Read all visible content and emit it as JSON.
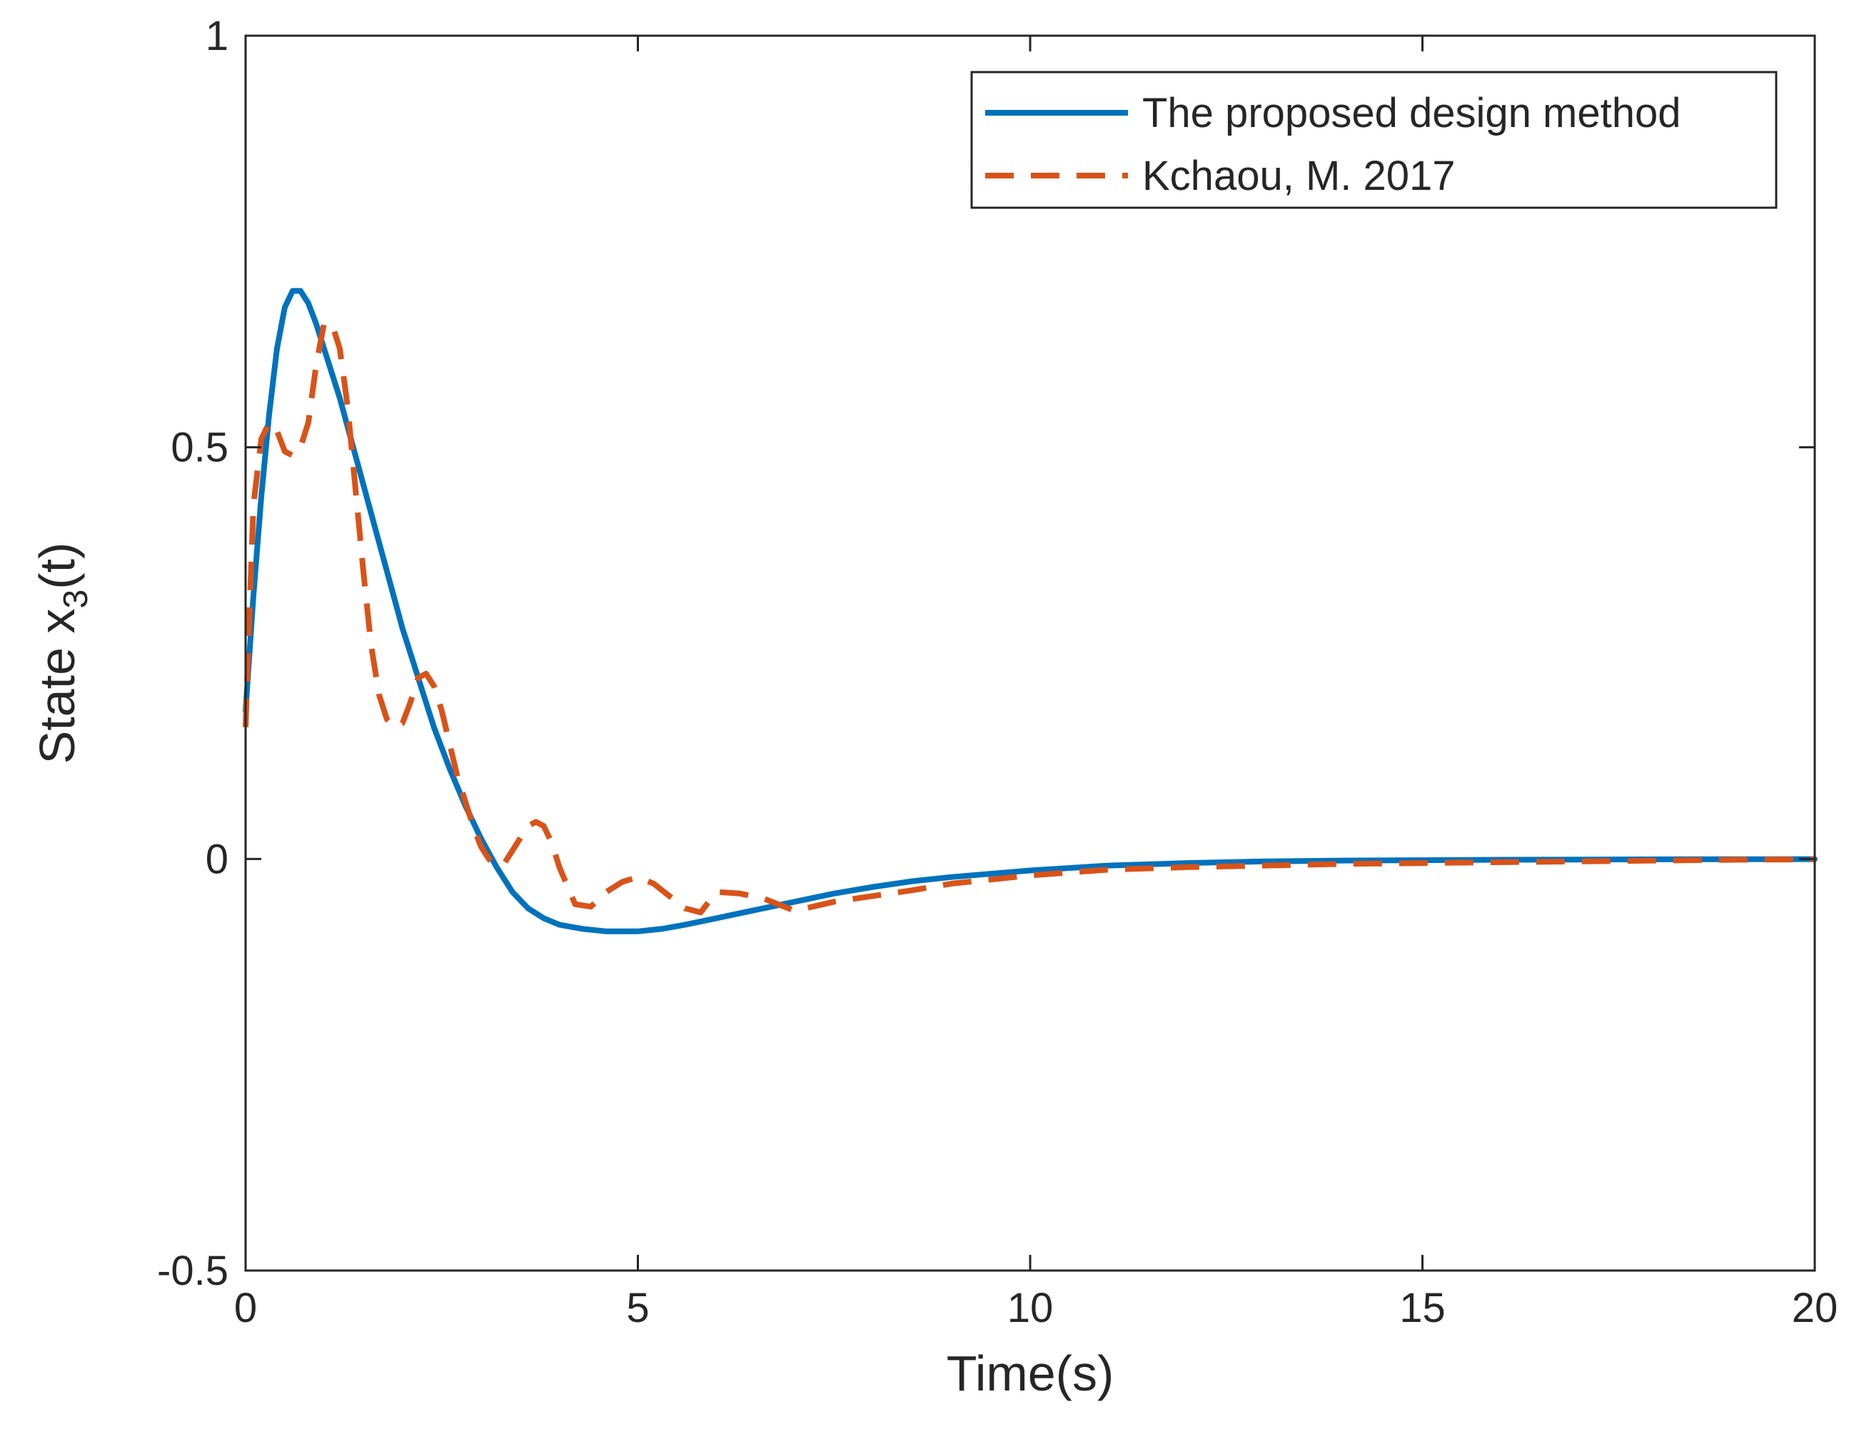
{
  "chart_data": {
    "type": "line",
    "title": "",
    "xlabel": "Time(s)",
    "ylabel": {
      "main": "State x",
      "sub": "3",
      "suffix": "(t)"
    },
    "xlim": [
      0,
      20
    ],
    "ylim": [
      -0.5,
      1
    ],
    "xticks": [
      0,
      5,
      10,
      15,
      20
    ],
    "xtick_labels": [
      "0",
      "5",
      "10",
      "15",
      "20"
    ],
    "yticks": [
      -0.5,
      0,
      0.5,
      1
    ],
    "ytick_labels": [
      "-0.5",
      "0",
      "0.5",
      "1"
    ],
    "grid": false,
    "legend_position": "top-right",
    "series": [
      {
        "name": "The proposed design method",
        "color": "#0072BD",
        "style": "solid",
        "x": [
          0,
          0.1,
          0.2,
          0.3,
          0.4,
          0.5,
          0.6,
          0.7,
          0.8,
          0.9,
          1.0,
          1.2,
          1.4,
          1.6,
          1.8,
          2.0,
          2.2,
          2.4,
          2.6,
          2.8,
          3.0,
          3.2,
          3.4,
          3.6,
          3.8,
          4.0,
          4.3,
          4.6,
          5.0,
          5.3,
          5.6,
          6.0,
          6.5,
          7.0,
          7.5,
          8.0,
          8.5,
          9.0,
          10.0,
          11.0,
          12.0,
          13.0,
          14.0,
          15.0,
          16.0,
          17.0,
          18.0,
          19.0,
          20.0
        ],
        "y": [
          0.18,
          0.32,
          0.44,
          0.54,
          0.62,
          0.67,
          0.69,
          0.69,
          0.675,
          0.65,
          0.62,
          0.56,
          0.49,
          0.42,
          0.35,
          0.28,
          0.22,
          0.16,
          0.11,
          0.065,
          0.025,
          -0.01,
          -0.04,
          -0.06,
          -0.072,
          -0.08,
          -0.085,
          -0.088,
          -0.088,
          -0.085,
          -0.08,
          -0.072,
          -0.062,
          -0.052,
          -0.042,
          -0.034,
          -0.027,
          -0.022,
          -0.014,
          -0.008,
          -0.005,
          -0.003,
          -0.002,
          -0.0015,
          -0.001,
          -0.0008,
          -0.0005,
          -0.0003,
          -0.0002
        ]
      },
      {
        "name": "Kchaou, M. 2017",
        "color": "#D95319",
        "style": "dashed",
        "x": [
          0,
          0.05,
          0.1,
          0.2,
          0.3,
          0.4,
          0.5,
          0.6,
          0.7,
          0.8,
          0.9,
          1.0,
          1.1,
          1.2,
          1.3,
          1.4,
          1.5,
          1.6,
          1.7,
          1.8,
          1.9,
          2.0,
          2.1,
          2.2,
          2.3,
          2.4,
          2.5,
          2.7,
          2.9,
          3.0,
          3.1,
          3.2,
          3.3,
          3.4,
          3.5,
          3.6,
          3.7,
          3.8,
          3.9,
          4.0,
          4.2,
          4.4,
          4.6,
          4.8,
          5.0,
          5.2,
          5.4,
          5.6,
          5.8,
          6.0,
          6.3,
          6.6,
          7.0,
          7.5,
          8.0,
          8.5,
          9.0,
          10.0,
          11.0,
          12.0,
          13.0,
          14.0,
          15.0,
          16.0,
          17.0,
          18.0,
          19.0,
          20.0
        ],
        "y": [
          0.16,
          0.3,
          0.43,
          0.51,
          0.53,
          0.52,
          0.495,
          0.49,
          0.5,
          0.53,
          0.6,
          0.65,
          0.65,
          0.62,
          0.55,
          0.45,
          0.35,
          0.26,
          0.2,
          0.17,
          0.16,
          0.165,
          0.19,
          0.22,
          0.225,
          0.21,
          0.18,
          0.1,
          0.04,
          0.015,
          0.0,
          -0.008,
          -0.005,
          0.01,
          0.025,
          0.04,
          0.045,
          0.04,
          0.02,
          -0.01,
          -0.055,
          -0.058,
          -0.04,
          -0.028,
          -0.022,
          -0.03,
          -0.045,
          -0.06,
          -0.065,
          -0.04,
          -0.042,
          -0.048,
          -0.063,
          -0.052,
          -0.045,
          -0.038,
          -0.03,
          -0.02,
          -0.013,
          -0.01,
          -0.008,
          -0.006,
          -0.005,
          -0.004,
          -0.003,
          -0.002,
          -0.001,
          -0.0005
        ]
      }
    ]
  }
}
